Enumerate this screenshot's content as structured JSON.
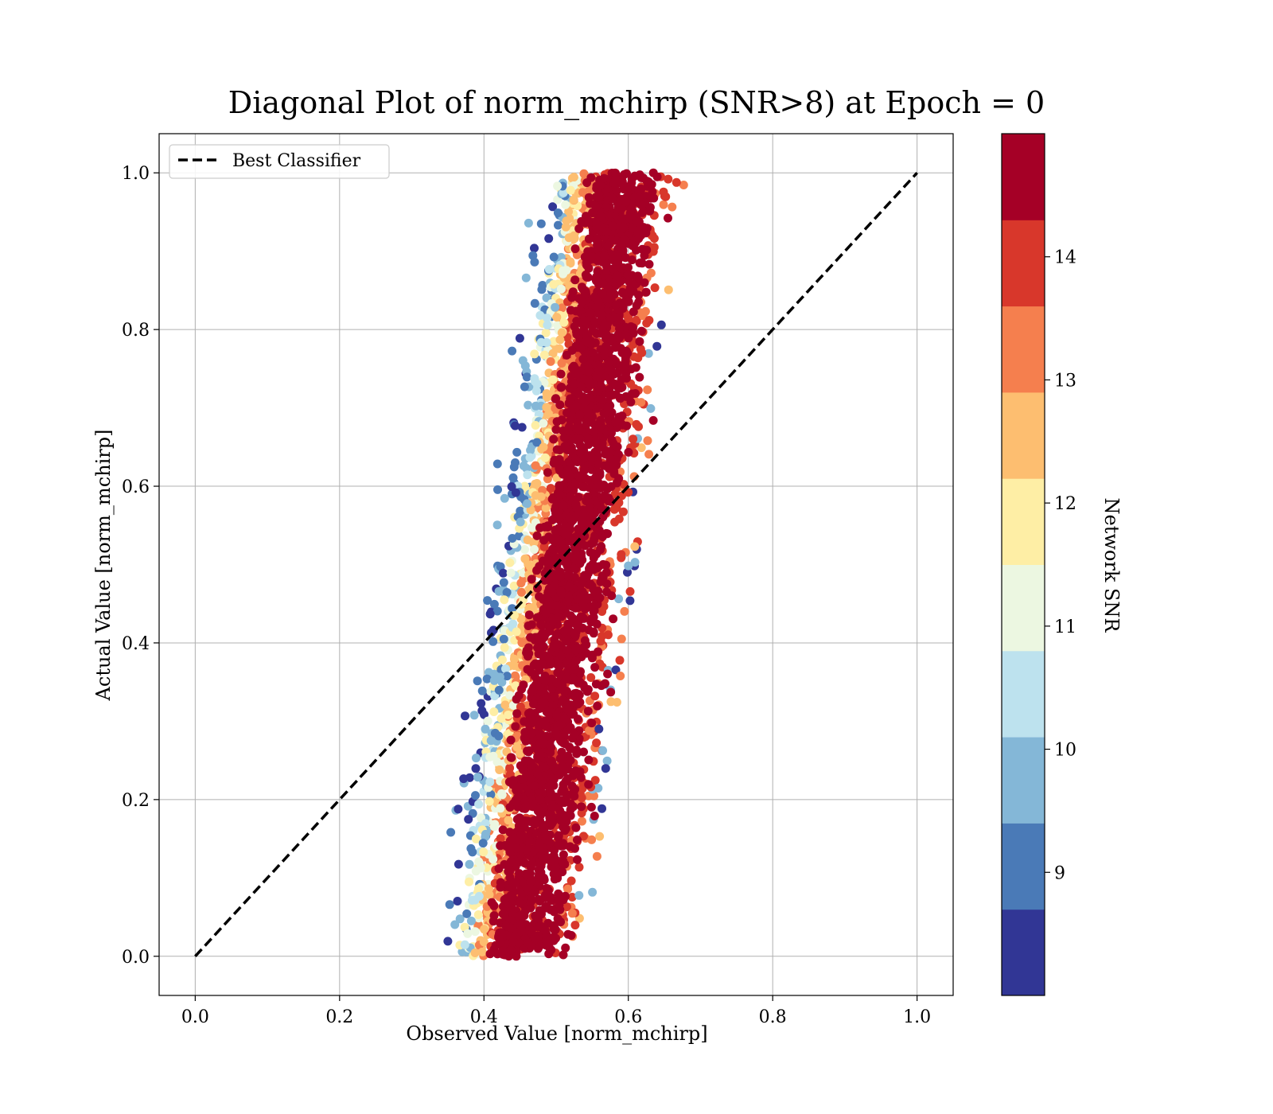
{
  "chart_data": {
    "type": "scatter",
    "title": "Diagonal Plot of norm_mchirp (SNR>8) at Epoch = 0",
    "xlabel": "Observed Value [norm_mchirp]",
    "ylabel": "Actual Value [norm_mchirp]",
    "xlim": [
      -0.05,
      1.05
    ],
    "ylim": [
      -0.05,
      1.05
    ],
    "xticks": [
      "0.0",
      "0.2",
      "0.4",
      "0.6",
      "0.8",
      "1.0"
    ],
    "yticks": [
      "0.0",
      "0.2",
      "0.4",
      "0.6",
      "0.8",
      "1.0"
    ],
    "grid": true,
    "legend": {
      "location": "upper-left",
      "entries": [
        "Best Classifier"
      ]
    },
    "reference_line": {
      "name": "Best Classifier",
      "style": "dashed",
      "color": "#000000",
      "x": [
        0.0,
        1.0
      ],
      "y": [
        0.0,
        1.0
      ]
    },
    "scatter_distribution": {
      "observed_range": [
        0.35,
        0.72
      ],
      "actual_range": [
        0.0,
        1.0
      ],
      "observed_at_actual_0": 0.44,
      "observed_at_actual_1": 0.58,
      "color_by": "Network SNR",
      "note_high_snr": "high-SNR points dominate the central band; low-SNR points concentrate at the left edge"
    },
    "colorbar": {
      "label": "Network SNR",
      "ticks": [
        "9",
        "10",
        "11",
        "12",
        "13",
        "14"
      ],
      "tick_values": [
        9,
        10,
        11,
        12,
        13,
        14
      ],
      "range": [
        8.0,
        15.0
      ],
      "boundaries": [
        8.0,
        8.7,
        9.4,
        10.1,
        10.8,
        11.5,
        12.2,
        12.9,
        13.6,
        14.3,
        15.0
      ],
      "colors": [
        "#313695",
        "#4a7ab7",
        "#84b7d7",
        "#bde2ee",
        "#ecf7e1",
        "#feeea5",
        "#fdbe70",
        "#f57f4e",
        "#d8372b",
        "#a50026"
      ]
    }
  }
}
